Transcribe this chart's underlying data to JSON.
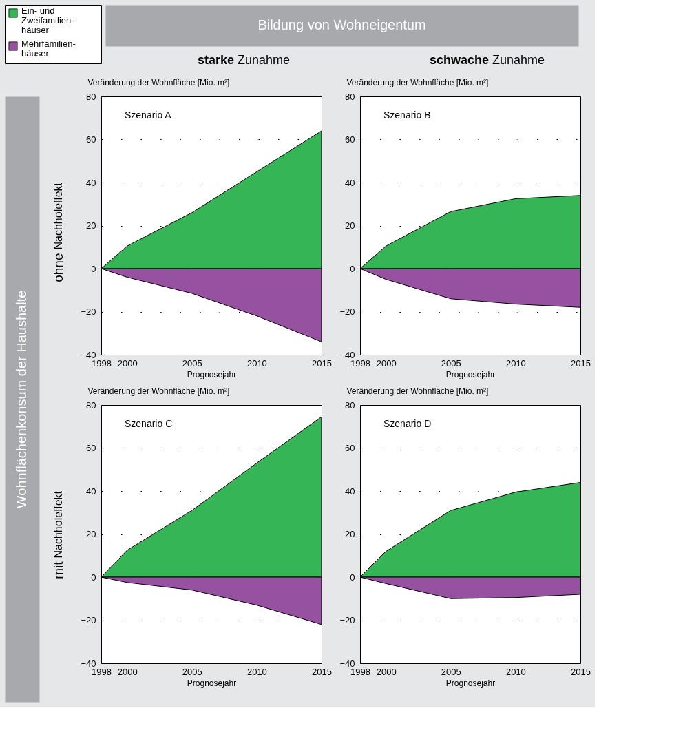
{
  "chart_data": [
    {
      "type": "area",
      "title": "starke Zunahme",
      "ylabel": "Veränderung der Wohnfläche [Mio. m²]",
      "xlabel": "Prognosejahr",
      "annotations": [
        "Szenario A",
        "ohne Nachholeffekt",
        "Bildung von Wohneigentum",
        "Wohnflächenkonsum der Haushalte"
      ],
      "x": [
        1998,
        2000,
        2005,
        2010,
        2015
      ],
      "xlim": [
        1998,
        2015
      ],
      "xticks": [
        1998,
        2000,
        2005,
        2010,
        2015
      ],
      "ylim": [
        -40,
        80
      ],
      "yticks": [
        -40,
        -20,
        0,
        20,
        40,
        60,
        80
      ],
      "grid": "y",
      "legend": "top left",
      "series": [
        {
          "name": "Ein- und\nZweifamilien-\nhäuser",
          "color": "#36b557",
          "values": [
            0,
            10.5,
            26,
            45,
            64
          ]
        },
        {
          "name": "Mehrfamilien-\nhäuser",
          "color": "#9651a0",
          "values": [
            0,
            -4,
            -11.5,
            -22,
            -34
          ]
        }
      ]
    },
    {
      "type": "area",
      "title": "schwache Zunahme",
      "ylabel": "Veränderung der Wohnfläche [Mio. m²]",
      "xlabel": "Prognosejahr",
      "annotations": [
        "Szenario B"
      ],
      "x": [
        1998,
        2000,
        2005,
        2010,
        2015
      ],
      "xlim": [
        1998,
        2015
      ],
      "xticks": [
        1998,
        2000,
        2005,
        2010,
        2015
      ],
      "ylim": [
        -40,
        80
      ],
      "yticks": [
        -40,
        -20,
        0,
        20,
        40,
        60,
        80
      ],
      "grid": "y",
      "series": [
        {
          "color": "#36b557",
          "values": [
            0,
            10.5,
            26.5,
            32.5,
            34
          ]
        },
        {
          "color": "#9651a0",
          "values": [
            0,
            -5,
            -14,
            -16.5,
            -18
          ]
        }
      ]
    },
    {
      "type": "area",
      "ylabel": "Veränderung der Wohnfläche [Mio. m²]",
      "xlabel": "Prognosejahr",
      "annotations": [
        "Szenario C",
        "mit Nachholeffekt"
      ],
      "x": [
        1998,
        2000,
        2005,
        2010,
        2015
      ],
      "xlim": [
        1998,
        2015
      ],
      "xticks": [
        1998,
        2000,
        2005,
        2010,
        2015
      ],
      "ylim": [
        -40,
        80
      ],
      "yticks": [
        -40,
        -20,
        0,
        20,
        40,
        60,
        80
      ],
      "grid": "y",
      "series": [
        {
          "color": "#36b557",
          "values": [
            0,
            12.5,
            31,
            53,
            74.5
          ]
        },
        {
          "color": "#9651a0",
          "values": [
            0,
            -2.5,
            -6,
            -13,
            -22
          ]
        }
      ]
    },
    {
      "type": "area",
      "ylabel": "Veränderung der Wohnfläche [Mio. m²]",
      "xlabel": "Prognosejahr",
      "annotations": [
        "Szenario D"
      ],
      "x": [
        1998,
        2000,
        2005,
        2010,
        2015
      ],
      "xlim": [
        1998,
        2015
      ],
      "xticks": [
        1998,
        2000,
        2005,
        2010,
        2015
      ],
      "ylim": [
        -40,
        80
      ],
      "yticks": [
        -40,
        -20,
        0,
        20,
        40,
        60,
        80
      ],
      "grid": "y",
      "series": [
        {
          "color": "#36b557",
          "values": [
            0,
            12,
            31,
            39.5,
            44
          ]
        },
        {
          "color": "#9651a0",
          "values": [
            0,
            -3,
            -10,
            -9.5,
            -8
          ]
        }
      ]
    }
  ]
}
